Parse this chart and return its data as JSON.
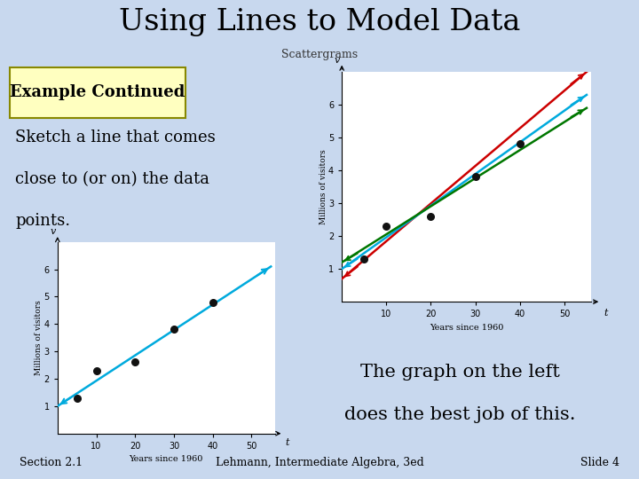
{
  "title": "Using Lines to Model Data",
  "subtitle": "Scattergrams",
  "bg_top": "#8eb4e3",
  "bg_main": "#c8d8ee",
  "bg_bottom": "#8eb4e3",
  "example_box_color": "#ffffc0",
  "example_box_border": "#888800",
  "example_title": "Example Continued",
  "example_text_line1": "Sketch a line that comes",
  "example_text_line2": "close to (or on) the data",
  "example_text_line3": "points.",
  "right_text_line1": "The graph on the left",
  "right_text_line2": "does the best job of this.",
  "footer_left": "Section 2.1",
  "footer_center": "Lehmann, Intermediate Algebra, 3ed",
  "footer_right": "Slide 4",
  "scatter_x": [
    5,
    10,
    20,
    30,
    40
  ],
  "scatter_y": [
    1.3,
    2.3,
    2.6,
    3.8,
    4.8
  ],
  "scatter_color": "#111111",
  "left_line_x0": 0,
  "left_line_y0": 1.0,
  "left_line_x1": 55,
  "left_line_y1": 6.1,
  "left_line_color": "#00aadd",
  "right_lines": [
    {
      "x0": 0,
      "y0": 0.7,
      "x1": 55,
      "y1": 7.0,
      "color": "#cc0000"
    },
    {
      "x0": 0,
      "y0": 1.0,
      "x1": 55,
      "y1": 6.3,
      "color": "#00aadd"
    },
    {
      "x0": 0,
      "y0": 1.2,
      "x1": 55,
      "y1": 5.9,
      "color": "#007700"
    }
  ],
  "xlim": [
    0,
    56
  ],
  "ylim": [
    0,
    7
  ],
  "xticks": [
    10,
    20,
    30,
    40,
    50
  ],
  "yticks": [
    1,
    2,
    3,
    4,
    5,
    6
  ],
  "xlabel": "Years since 1960",
  "ylabel": "Millions of visitors"
}
